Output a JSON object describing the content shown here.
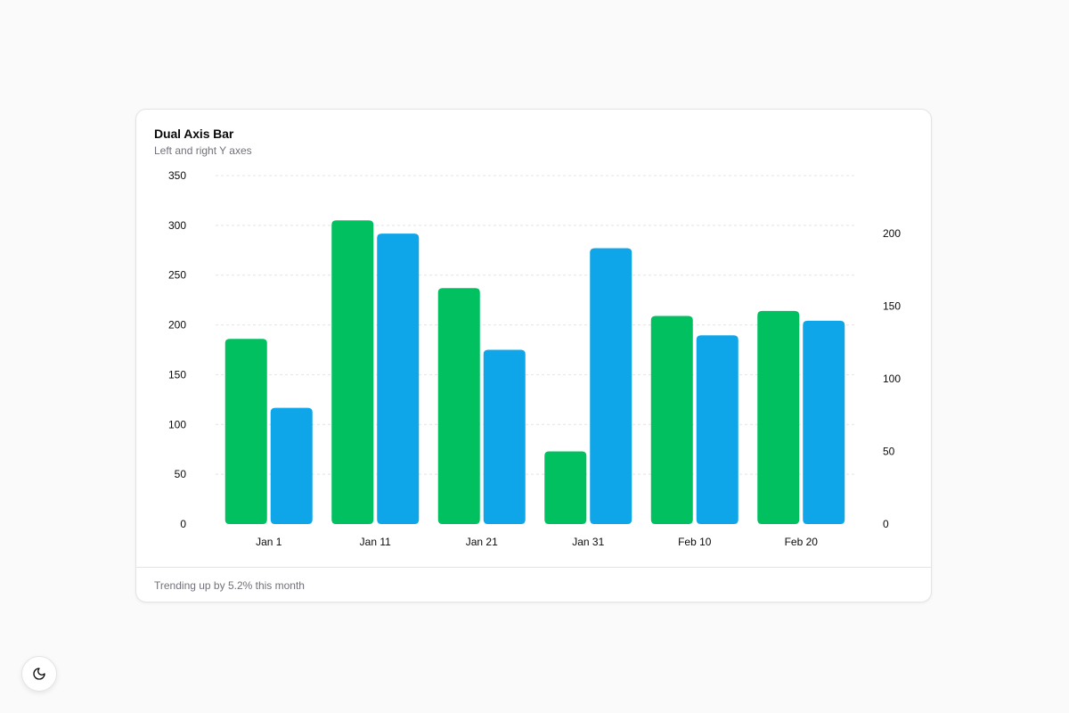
{
  "card": {
    "title": "Dual Axis Bar",
    "subtitle": "Left and right Y axes",
    "footer": "Trending up by 5.2% this month"
  },
  "theme_toggle": {
    "icon": "moon-icon"
  },
  "chart_data": {
    "type": "bar",
    "categories": [
      "Jan 1",
      "Jan 11",
      "Jan 21",
      "Jan 31",
      "Feb 10",
      "Feb 20"
    ],
    "series": [
      {
        "axis": "left",
        "color": "#00c060",
        "values": [
          186,
          305,
          237,
          73,
          209,
          214
        ]
      },
      {
        "axis": "right",
        "color": "#0ea5e9",
        "values": [
          80,
          200,
          120,
          190,
          130,
          140
        ]
      }
    ],
    "left_axis": {
      "ylim": [
        0,
        350
      ],
      "ticks": [
        "0",
        "50",
        "100",
        "150",
        "200",
        "250",
        "300",
        "350"
      ]
    },
    "right_axis": {
      "ylim": [
        0,
        240
      ],
      "ticks": [
        "0",
        "50",
        "100",
        "150",
        "200"
      ]
    },
    "grid": true,
    "xlabel": "",
    "ylabel": ""
  }
}
